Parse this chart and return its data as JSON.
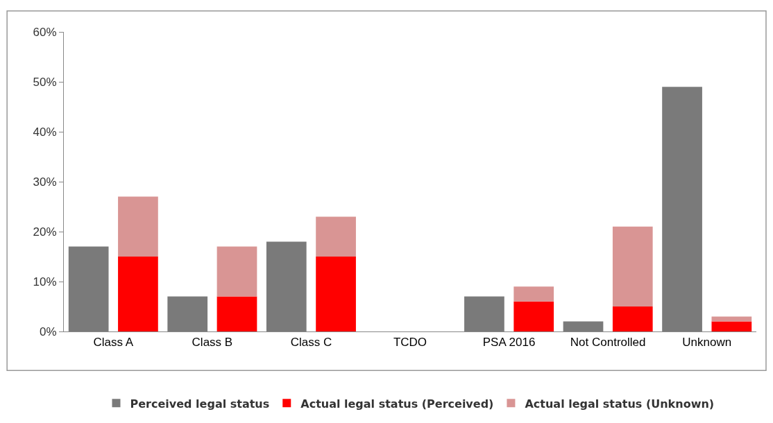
{
  "chart_data": {
    "type": "bar",
    "stacked": true,
    "categories": [
      "Class A",
      null,
      "Class B",
      null,
      "Class C",
      null,
      "TCDO",
      null,
      "PSA 2016",
      null,
      "Not Controlled",
      null,
      "Unknown",
      null
    ],
    "series": [
      {
        "name": "Perceived legal status",
        "color": "#7a7a7a",
        "values": [
          17,
          null,
          7,
          null,
          18,
          null,
          0,
          null,
          7,
          null,
          2,
          null,
          49,
          null
        ]
      },
      {
        "name": "Actual legal status (Perceived)",
        "color": "#ff0000",
        "values": [
          null,
          15,
          null,
          7,
          null,
          15,
          null,
          0,
          null,
          6,
          null,
          5,
          null,
          2
        ]
      },
      {
        "name": "Actual legal status (Unknown)",
        "color": "#d99594",
        "values": [
          null,
          12,
          null,
          10,
          null,
          8,
          null,
          0,
          null,
          3,
          null,
          16,
          null,
          1
        ]
      }
    ],
    "ylim": [
      0,
      60
    ],
    "yticks": [
      {
        "value": 0,
        "label": "0%"
      },
      {
        "value": 10,
        "label": "10%"
      },
      {
        "value": 20,
        "label": "20%"
      },
      {
        "value": 30,
        "label": "30%"
      },
      {
        "value": 40,
        "label": "40%"
      },
      {
        "value": 50,
        "label": "50%"
      },
      {
        "value": 60,
        "label": "60%"
      }
    ],
    "grid": false,
    "legend": "bottom"
  }
}
